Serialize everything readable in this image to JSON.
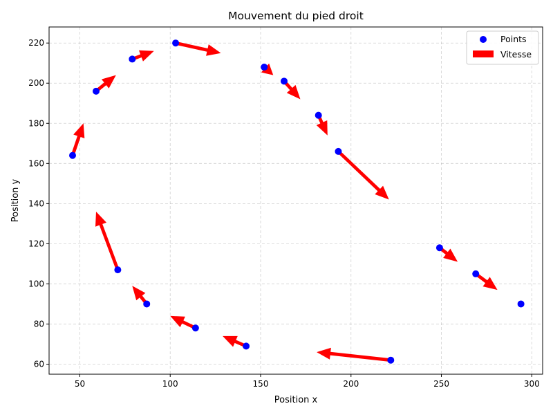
{
  "chart_data": {
    "type": "scatter",
    "title": "Mouvement du pied droit",
    "xlabel": "Position x",
    "ylabel": "Position y",
    "xlim": [
      33,
      306
    ],
    "ylim": [
      55,
      228
    ],
    "xticks": [
      50,
      100,
      150,
      200,
      250,
      300
    ],
    "yticks": [
      60,
      80,
      100,
      120,
      140,
      160,
      180,
      200,
      220
    ],
    "grid": true,
    "legend_position": "top-right",
    "legend": [
      {
        "label": "Points",
        "marker": "circle",
        "color": "#0000ff"
      },
      {
        "label": "Vitesse",
        "marker": "arrow",
        "color": "#ff0000"
      }
    ],
    "points": {
      "name": "Points",
      "color": "#0000ff",
      "x": [
        294,
        269,
        249,
        222,
        193,
        182,
        163,
        152,
        142,
        114,
        103,
        87,
        79,
        71,
        59,
        46
      ],
      "y": [
        90,
        105,
        118,
        62,
        166,
        184,
        201,
        208,
        69,
        78,
        220,
        90,
        212,
        107,
        196,
        164
      ]
    },
    "vectors": {
      "name": "Vitesse",
      "color": "#ff0000",
      "items": [
        {
          "x": 269,
          "y": 105,
          "u": 12,
          "v": -8
        },
        {
          "x": 249,
          "y": 118,
          "u": 10,
          "v": -7
        },
        {
          "x": 222,
          "y": 62,
          "u": -41,
          "v": 4
        },
        {
          "x": 193,
          "y": 166,
          "u": 28,
          "v": -24
        },
        {
          "x": 182,
          "y": 184,
          "u": 5,
          "v": -10
        },
        {
          "x": 163,
          "y": 201,
          "u": 9,
          "v": -9
        },
        {
          "x": 152,
          "y": 208,
          "u": 5,
          "v": -4
        },
        {
          "x": 142,
          "y": 69,
          "u": -13,
          "v": 5
        },
        {
          "x": 114,
          "y": 78,
          "u": -14,
          "v": 6
        },
        {
          "x": 103,
          "y": 220,
          "u": 25,
          "v": -5
        },
        {
          "x": 87,
          "y": 90,
          "u": -8,
          "v": 9
        },
        {
          "x": 79,
          "y": 212,
          "u": 12,
          "v": 4
        },
        {
          "x": 71,
          "y": 107,
          "u": -12,
          "v": 29
        },
        {
          "x": 59,
          "y": 196,
          "u": 11,
          "v": 8
        },
        {
          "x": 46,
          "y": 164,
          "u": 6,
          "v": 16
        }
      ]
    }
  }
}
